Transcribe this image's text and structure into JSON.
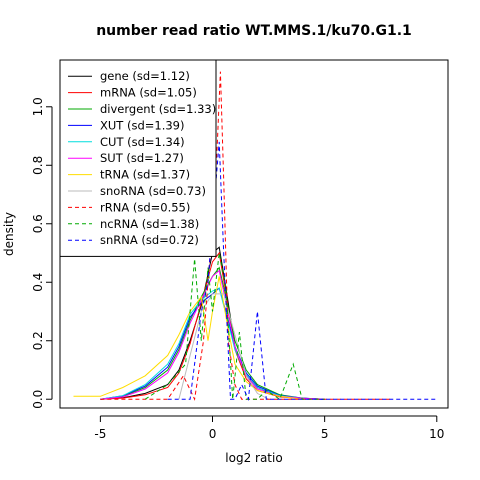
{
  "chart_data": {
    "type": "line",
    "title": "number read ratio WT.MMS.1/ku70.G1.1",
    "xlabel": "log2 ratio",
    "ylabel": "density",
    "xlim": [
      -6.8,
      10.5
    ],
    "ylim": [
      -0.03,
      1.16
    ],
    "xticks": [
      -5,
      0,
      5,
      10
    ],
    "xtick_labels": [
      "-5",
      "0",
      "5",
      "10"
    ],
    "yticks": [
      0.0,
      0.2,
      0.4,
      0.6,
      0.8,
      1.0
    ],
    "ytick_labels": [
      "0.0",
      "0.2",
      "0.4",
      "0.6",
      "0.8",
      "1.0"
    ],
    "grid": false,
    "legend_position": "top-left",
    "series": [
      {
        "name": "gene (sd=1.12)",
        "color": "#000000",
        "dash": "solid",
        "x": [
          -5,
          -4,
          -3,
          -2,
          -1.5,
          -1,
          -0.5,
          0,
          0.3,
          0.6,
          1,
          1.5,
          2,
          3,
          4,
          5
        ],
        "y": [
          0.0,
          0.005,
          0.02,
          0.05,
          0.1,
          0.2,
          0.32,
          0.5,
          0.52,
          0.38,
          0.18,
          0.08,
          0.04,
          0.01,
          0.003,
          0.0
        ]
      },
      {
        "name": "mRNA (sd=1.05)",
        "color": "#ff0000",
        "dash": "solid",
        "x": [
          -5,
          -4,
          -3,
          -2,
          -1.5,
          -1,
          -0.5,
          0,
          0.3,
          0.6,
          1,
          1.5,
          2,
          3,
          4,
          5
        ],
        "y": [
          0.0,
          0.004,
          0.015,
          0.04,
          0.09,
          0.19,
          0.33,
          0.47,
          0.5,
          0.36,
          0.17,
          0.07,
          0.03,
          0.008,
          0.002,
          0.0
        ]
      },
      {
        "name": "divergent (sd=1.33)",
        "color": "#00aa00",
        "dash": "solid",
        "x": [
          -5,
          -4,
          -3,
          -2,
          -1.5,
          -1,
          -0.5,
          0,
          0.3,
          0.6,
          1,
          1.5,
          2,
          3,
          4,
          5
        ],
        "y": [
          0.0,
          0.01,
          0.04,
          0.1,
          0.17,
          0.27,
          0.35,
          0.42,
          0.45,
          0.35,
          0.2,
          0.1,
          0.05,
          0.015,
          0.004,
          0.0
        ]
      },
      {
        "name": "XUT (sd=1.39)",
        "color": "#0000ff",
        "dash": "solid",
        "x": [
          -5,
          -4,
          -3,
          -2,
          -1.5,
          -1,
          -0.5,
          0,
          0.3,
          0.6,
          1,
          1.5,
          2,
          3,
          4,
          5
        ],
        "y": [
          0.0,
          0.012,
          0.045,
          0.11,
          0.18,
          0.28,
          0.33,
          0.36,
          0.38,
          0.3,
          0.18,
          0.09,
          0.045,
          0.013,
          0.004,
          0.0
        ]
      },
      {
        "name": "CUT (sd=1.34)",
        "color": "#00dddd",
        "dash": "solid",
        "x": [
          -5,
          -4,
          -3,
          -2,
          -1.5,
          -1,
          -0.5,
          0,
          0.3,
          0.6,
          1,
          1.5,
          2,
          3,
          4,
          5
        ],
        "y": [
          0.0,
          0.012,
          0.05,
          0.12,
          0.19,
          0.29,
          0.34,
          0.37,
          0.38,
          0.29,
          0.17,
          0.085,
          0.04,
          0.012,
          0.003,
          0.0
        ]
      },
      {
        "name": "SUT (sd=1.27)",
        "color": "#ff00ff",
        "dash": "solid",
        "x": [
          -5,
          -4,
          -3,
          -2,
          -1.5,
          -1,
          -0.5,
          0,
          0.3,
          0.6,
          1,
          1.5,
          2,
          3,
          4,
          5
        ],
        "y": [
          0.0,
          0.008,
          0.035,
          0.09,
          0.16,
          0.26,
          0.34,
          0.42,
          0.44,
          0.33,
          0.18,
          0.08,
          0.035,
          0.01,
          0.003,
          0.0
        ]
      },
      {
        "name": "tRNA (sd=1.37)",
        "color": "#ffdd00",
        "dash": "solid",
        "x": [
          -6.2,
          -5,
          -4,
          -3,
          -2,
          -1.5,
          -1,
          -0.5,
          -0.2,
          0,
          0.3,
          0.6,
          1,
          1.5,
          2,
          3,
          4
        ],
        "y": [
          0.01,
          0.01,
          0.04,
          0.08,
          0.15,
          0.22,
          0.3,
          0.35,
          0.2,
          0.3,
          0.42,
          0.28,
          0.12,
          0.06,
          0.03,
          0.01,
          0.0
        ]
      },
      {
        "name": "snoRNA (sd=0.73)",
        "color": "#bbbbbb",
        "dash": "solid",
        "x": [
          -1.5,
          -1,
          -0.5,
          0,
          0.5,
          1,
          1.5,
          2,
          2.5
        ],
        "y": [
          0.0,
          0.15,
          0.3,
          0.36,
          0.36,
          0.22,
          0.08,
          0.02,
          0.0
        ]
      },
      {
        "name": "rRNA (sd=0.55)",
        "color": "#ff0000",
        "dash": "dashed",
        "x": [
          -5,
          -2,
          -1.3,
          -0.8,
          -0.4,
          0,
          0.2,
          0.35,
          0.5,
          0.7,
          1,
          1.3,
          2,
          3,
          5,
          8
        ],
        "y": [
          0.0,
          0.0,
          0.08,
          0.0,
          0.2,
          0.6,
          0.85,
          1.12,
          0.75,
          0.2,
          0.05,
          0.0,
          0.0,
          0.0,
          0.0,
          0.0
        ]
      },
      {
        "name": "ncRNA (sd=1.38)",
        "color": "#00aa00",
        "dash": "dashed",
        "x": [
          -3,
          -2,
          -1.2,
          -0.8,
          -0.5,
          -0.2,
          0,
          0.3,
          0.6,
          0.9,
          1.2,
          1.5,
          2,
          2.4,
          3,
          3.6,
          4,
          5
        ],
        "y": [
          0.0,
          0.05,
          0.12,
          0.48,
          0.2,
          0.45,
          0.3,
          0.5,
          0.38,
          0.0,
          0.23,
          0.0,
          0.0,
          0.03,
          0.0,
          0.12,
          0.0,
          0.0
        ]
      },
      {
        "name": "snRNA (sd=0.72)",
        "color": "#0000ff",
        "dash": "dashed",
        "x": [
          -2,
          -1,
          -0.5,
          -0.2,
          0,
          0.3,
          0.5,
          0.8,
          1,
          1.3,
          1.6,
          2,
          2.4,
          2.7,
          4,
          10
        ],
        "y": [
          0.0,
          0.0,
          0.3,
          0.4,
          0.6,
          0.88,
          0.5,
          0.0,
          0.0,
          0.05,
          0.0,
          0.3,
          0.0,
          0.0,
          0.0,
          0.0
        ]
      }
    ]
  }
}
